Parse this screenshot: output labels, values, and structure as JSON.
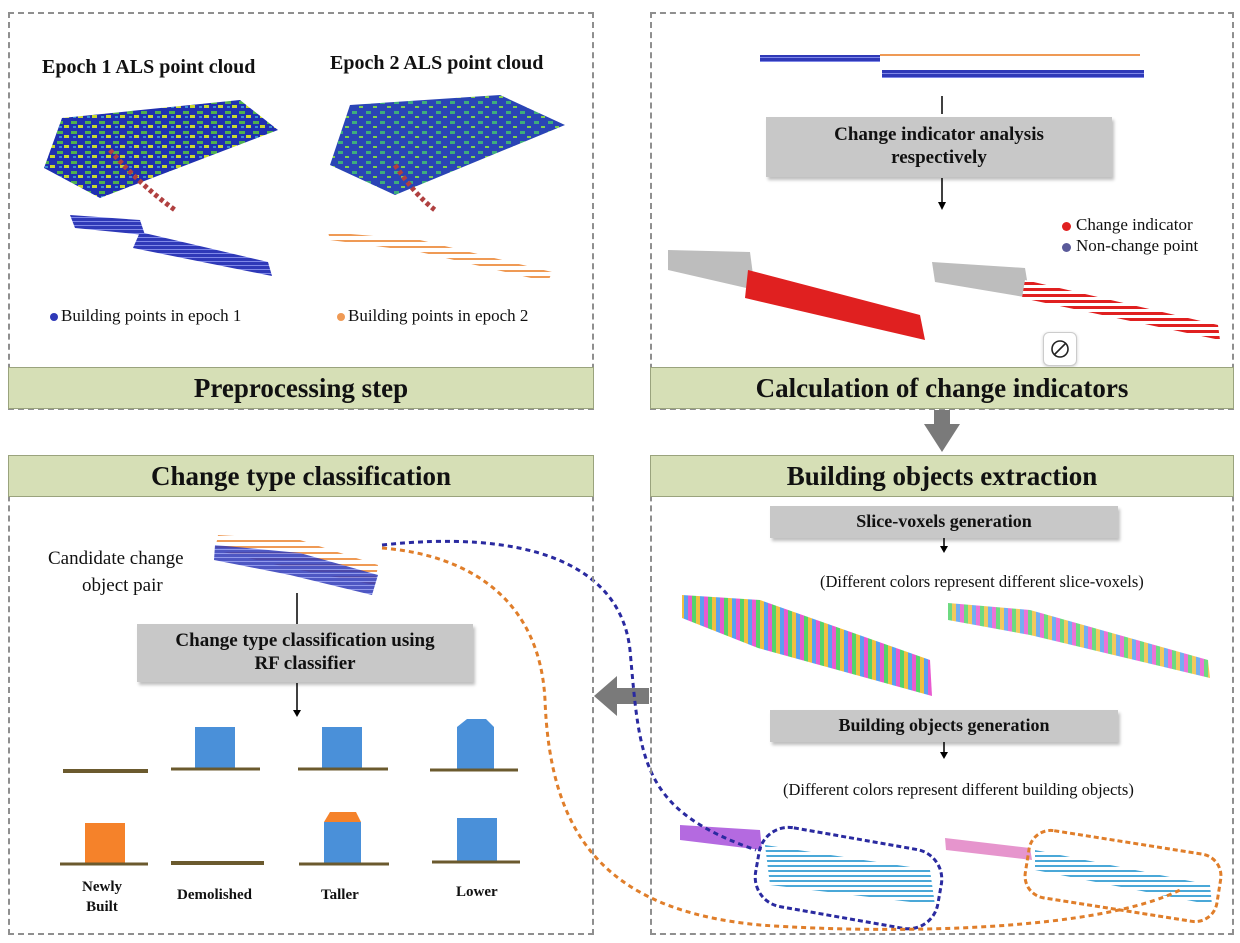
{
  "colors": {
    "banner_fill": "#d6dfb6",
    "process_box_fill": "#c8c8c8",
    "epoch1_building": "#2f39b8",
    "epoch2_building": "#ef9a55",
    "change_indicator": "#e02020",
    "non_change_point": "#5a5a9a",
    "building_block_blue": "#4a90d9",
    "building_block_orange": "#f5822a",
    "ground_line": "#6b5a2e"
  },
  "preprocessing": {
    "epoch1_title": "Epoch 1 ALS point cloud",
    "epoch2_title": "Epoch 2 ALS point cloud",
    "legend_epoch1": "Building points in epoch 1",
    "legend_epoch2": "Building points in epoch 2",
    "banner": "Preprocessing step"
  },
  "change_indicators": {
    "box_line1": "Change indicator analysis",
    "box_line2": "respectively",
    "legend_change": "Change indicator",
    "legend_nonchange": "Non-change point",
    "banner": "Calculation of change indicators",
    "overlay_icon": "no-entry-icon"
  },
  "building_extraction": {
    "banner": "Building objects extraction",
    "slice_box": "Slice-voxels generation",
    "slice_note": "(Different colors represent different slice-voxels)",
    "objects_box": "Building objects generation",
    "objects_note": "(Different colors represent different building objects)"
  },
  "classification": {
    "banner": "Change type classification",
    "candidate_line1": "Candidate change",
    "candidate_line2": "object pair",
    "box_line1": "Change type classification using",
    "box_line2": "RF classifier",
    "labels": {
      "newly_line1": "Newly",
      "newly_line2": "Built",
      "demolished": "Demolished",
      "taller": "Taller",
      "lower": "Lower"
    }
  }
}
